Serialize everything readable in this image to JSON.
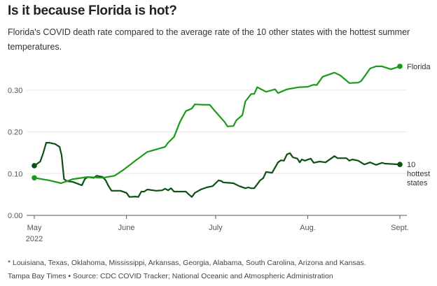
{
  "header": {
    "title": "Is it because Florida is hot?",
    "subtitle": "Florida's COVID death rate compared to the average rate of the 10 other states with the hottest summer temperatures."
  },
  "footer": {
    "note": "* Louisiana, Texas, Oklahoma, Mississippi, Arkansas, Georgia, Alabama, South Carolina, Arizona and Kansas.",
    "credit": "Tampa Bay Times • Source: CDC COVID Tracker; National Oceanic and Atmospheric Administration"
  },
  "chart_data": {
    "type": "line",
    "title": "Is it because Florida is hot?",
    "subtitle": "Florida's COVID death rate compared to the average rate of the 10 other states with the hottest summer temperatures.",
    "xlabel": "",
    "ylabel": "",
    "x_unit": "days since May 1, 2022",
    "xlim": [
      0,
      123
    ],
    "ylim": [
      0,
      0.36
    ],
    "grid": true,
    "y_ticks": [
      {
        "value": 0.0,
        "label": "0.00"
      },
      {
        "value": 0.1,
        "label": "0.10"
      },
      {
        "value": 0.2,
        "label": "0.20"
      },
      {
        "value": 0.3,
        "label": "0.30"
      }
    ],
    "x_ticks": [
      {
        "value": 0,
        "label": "May",
        "sublabel": "2022"
      },
      {
        "value": 31,
        "label": "June",
        "sublabel": ""
      },
      {
        "value": 61,
        "label": "July",
        "sublabel": ""
      },
      {
        "value": 92,
        "label": "Aug.",
        "sublabel": ""
      },
      {
        "value": 123,
        "label": "Sept.",
        "sublabel": ""
      }
    ],
    "legend": "direct-labels-right",
    "series": [
      {
        "name": "Florida",
        "label_lines": [
          "Florida"
        ],
        "color": "#1a9a1a",
        "x": [
          0,
          5,
          9,
          13,
          18,
          23,
          27,
          30,
          34,
          38,
          44,
          45,
          47,
          49,
          51,
          53,
          54,
          57,
          59,
          61,
          64,
          65,
          67,
          68,
          70,
          71,
          73,
          74,
          75,
          78,
          81,
          82,
          85,
          89,
          92,
          94,
          95,
          97,
          99,
          101,
          103,
          106,
          109,
          110,
          113,
          115,
          117,
          120,
          123
        ],
        "y": [
          0.09,
          0.084,
          0.077,
          0.087,
          0.092,
          0.09,
          0.095,
          0.109,
          0.131,
          0.152,
          0.164,
          0.174,
          0.188,
          0.224,
          0.25,
          0.256,
          0.266,
          0.265,
          0.265,
          0.248,
          0.224,
          0.213,
          0.214,
          0.228,
          0.24,
          0.273,
          0.291,
          0.291,
          0.307,
          0.296,
          0.302,
          0.293,
          0.302,
          0.307,
          0.308,
          0.313,
          0.312,
          0.332,
          0.337,
          0.342,
          0.335,
          0.317,
          0.318,
          0.322,
          0.352,
          0.357,
          0.357,
          0.35,
          0.357
        ]
      },
      {
        "name": "10 hottest states",
        "label_lines": [
          "10",
          "hottest",
          "states"
        ],
        "color": "#0e4f12",
        "x": [
          0,
          2,
          3,
          4,
          5,
          7,
          8.5,
          9.2,
          10,
          11,
          13,
          16,
          17,
          18,
          20,
          21,
          23,
          24,
          25,
          26,
          29,
          31,
          32,
          34,
          35,
          36,
          37,
          38,
          41,
          43,
          44,
          45,
          46,
          47,
          51,
          52,
          53,
          54,
          56,
          58,
          60,
          62,
          63,
          63.5,
          67,
          69,
          71,
          72,
          73,
          74,
          76,
          77,
          78,
          80,
          82,
          83,
          84,
          85,
          86,
          87,
          88.5,
          89.3,
          90,
          91,
          93,
          94,
          96,
          98,
          101,
          102,
          105,
          106,
          107,
          109,
          111,
          113,
          115,
          117,
          118,
          123
        ],
        "y": [
          0.119,
          0.129,
          0.149,
          0.174,
          0.174,
          0.171,
          0.164,
          0.144,
          0.087,
          0.082,
          0.08,
          0.072,
          0.087,
          0.092,
          0.09,
          0.095,
          0.092,
          0.084,
          0.07,
          0.059,
          0.059,
          0.054,
          0.044,
          0.045,
          0.044,
          0.057,
          0.057,
          0.062,
          0.059,
          0.06,
          0.064,
          0.06,
          0.065,
          0.057,
          0.057,
          0.05,
          0.044,
          0.054,
          0.062,
          0.067,
          0.07,
          0.084,
          0.082,
          0.079,
          0.077,
          0.07,
          0.065,
          0.067,
          0.065,
          0.065,
          0.084,
          0.089,
          0.104,
          0.102,
          0.127,
          0.132,
          0.131,
          0.146,
          0.149,
          0.139,
          0.136,
          0.127,
          0.134,
          0.131,
          0.136,
          0.126,
          0.129,
          0.127,
          0.142,
          0.137,
          0.137,
          0.131,
          0.134,
          0.131,
          0.122,
          0.127,
          0.121,
          0.126,
          0.124,
          0.122
        ]
      }
    ]
  }
}
